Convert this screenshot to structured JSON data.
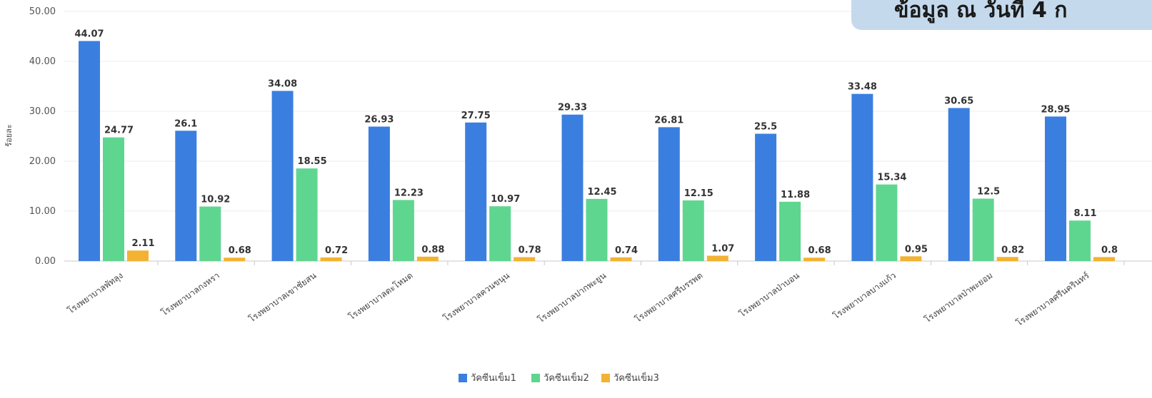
{
  "banner": {
    "text": "ข้อมูล ณ วันที่ 4 ก"
  },
  "chart_data": {
    "type": "bar",
    "title": "",
    "ylabel": "ร้อยละ",
    "xlabel": "",
    "ylim": [
      0,
      50
    ],
    "yticks": [
      "0.00",
      "10.00",
      "20.00",
      "30.00",
      "40.00",
      "50.00"
    ],
    "grid": true,
    "legend_position": "bottom-center",
    "categories": [
      "โรงพยาบาลพัทลุง",
      "โรงพยาบาลกงหรา",
      "โรงพยาบาลเขาชัยสน",
      "โรงพยาบาลตะโหมด",
      "โรงพยาบาลควนขนุน",
      "โรงพยาบาลปากพะยูน",
      "โรงพยาบาลศรีบรรพต",
      "โรงพยาบาลป่าบอน",
      "โรงพยาบาลบางแก้ว",
      "โรงพยาบาลป่าพะยอม",
      "โรงพยาบาลศรีนครินทร์"
    ],
    "series": [
      {
        "name": "วัคซีนเข็ม1",
        "color": "#3a7fe0",
        "values": [
          44.07,
          26.1,
          34.08,
          26.93,
          27.75,
          29.33,
          26.81,
          25.5,
          33.48,
          30.65,
          28.95
        ],
        "labels": [
          "44.07",
          "26.1",
          "34.08",
          "26.93",
          "27.75",
          "29.33",
          "26.81",
          "25.5",
          "33.48",
          "30.65",
          "28.95"
        ]
      },
      {
        "name": "วัคซีนเข็ม2",
        "color": "#5fd68f",
        "values": [
          24.77,
          10.92,
          18.55,
          12.23,
          10.97,
          12.45,
          12.15,
          11.88,
          15.34,
          12.5,
          8.11
        ],
        "labels": [
          "24.77",
          "10.92",
          "18.55",
          "12.23",
          "10.97",
          "12.45",
          "12.15",
          "11.88",
          "15.34",
          "12.5",
          "8.11"
        ]
      },
      {
        "name": "วัคซีนเข็ม3",
        "color": "#f2b233",
        "values": [
          2.11,
          0.68,
          0.72,
          0.88,
          0.78,
          0.74,
          1.07,
          0.68,
          0.95,
          0.82,
          0.8
        ],
        "labels": [
          "2.11",
          "0.68",
          "0.72",
          "0.88",
          "0.78",
          "0.74",
          "1.07",
          "0.68",
          "0.95",
          "0.82",
          "0.8"
        ]
      }
    ]
  }
}
